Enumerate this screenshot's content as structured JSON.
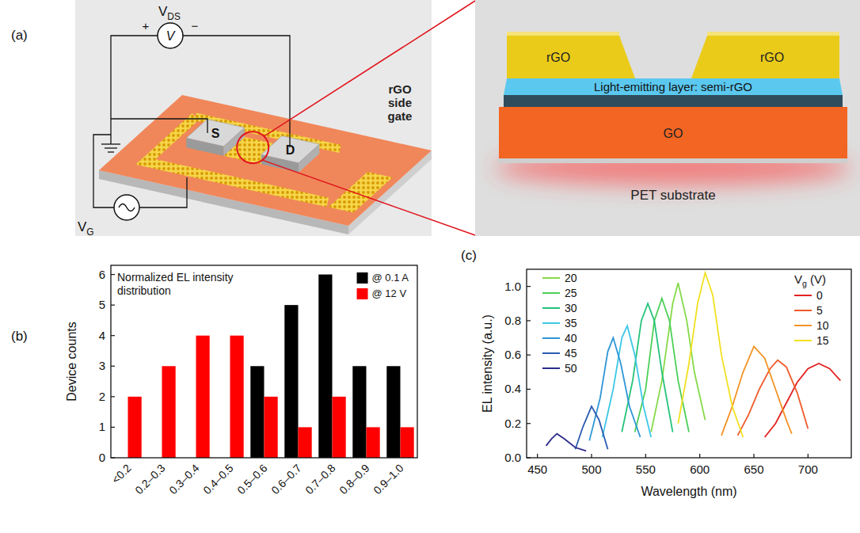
{
  "diagram": {
    "panel_label": "(a)",
    "device": {
      "vds_label": {
        "main": "V",
        "sub": "DS"
      },
      "meter": "V",
      "plus": "+",
      "minus": "−",
      "source": "S",
      "drain": "D",
      "vg_label": {
        "main": "V",
        "sub": "G"
      },
      "side_gate": "rGO side gate"
    },
    "cross_section": {
      "electrode_left": "rGO",
      "electrode_right": "rGO",
      "emitting_layer": "Light-emitting layer: semi-rGO",
      "dielectric": "GO",
      "substrate": "PET substrate"
    }
  },
  "chart_data": [
    {
      "panel_label": "(b)",
      "type": "bar",
      "annotation": "Normalized EL intensity distribution",
      "y_label": "Device counts",
      "categories": [
        "<0.2",
        "0.2–0.3",
        "0.3–0.4",
        "0.4–0.5",
        "0.5–0.6",
        "0.6–0.7",
        "0.7–0.8",
        "0.8–0.9",
        "0.9–1.0"
      ],
      "series": [
        {
          "name": "@ 0.1 A",
          "color": "#000000",
          "values": [
            0,
            0,
            0,
            0,
            3,
            5,
            6,
            3,
            3
          ]
        },
        {
          "name": "@ 12 V",
          "color": "#ff0000",
          "values": [
            2,
            3,
            4,
            4,
            2,
            1,
            2,
            1,
            1
          ]
        }
      ],
      "ylim": [
        0,
        6.3
      ],
      "yticks": [
        0,
        1,
        2,
        3,
        4,
        5,
        6
      ],
      "legend": "top-right",
      "grid": false
    },
    {
      "panel_label": "(c)",
      "type": "line",
      "x_label": "Wavelength (nm)",
      "y_label": "EL intensity (a.u.)",
      "legend_title": {
        "main": "V",
        "sub": "g",
        "rest": " (V)"
      },
      "series": [
        {
          "name": "20",
          "color": "#86da4a",
          "x": [
            555,
            565,
            575,
            580,
            588,
            595,
            605
          ],
          "values": [
            0.15,
            0.45,
            0.9,
            1.02,
            0.8,
            0.5,
            0.22
          ]
        },
        {
          "name": "25",
          "color": "#4ccf57",
          "x": [
            540,
            550,
            558,
            565,
            572,
            580,
            590
          ],
          "values": [
            0.15,
            0.4,
            0.8,
            0.93,
            0.8,
            0.45,
            0.15
          ]
        },
        {
          "name": "30",
          "color": "#25c27a",
          "x": [
            528,
            538,
            546,
            552,
            558,
            565,
            575
          ],
          "values": [
            0.15,
            0.45,
            0.8,
            0.9,
            0.8,
            0.5,
            0.15
          ]
        },
        {
          "name": "35",
          "color": "#3cc7e6",
          "x": [
            510,
            520,
            528,
            533,
            540,
            548,
            555
          ],
          "values": [
            0.12,
            0.4,
            0.7,
            0.77,
            0.6,
            0.3,
            0.12
          ]
        },
        {
          "name": "40",
          "color": "#2f96d6",
          "x": [
            498,
            508,
            515,
            520,
            527,
            535,
            545
          ],
          "values": [
            0.1,
            0.35,
            0.62,
            0.7,
            0.55,
            0.3,
            0.12
          ]
        },
        {
          "name": "45",
          "color": "#2b5bb0",
          "x": [
            485,
            492,
            500,
            507,
            515
          ],
          "values": [
            0.05,
            0.18,
            0.3,
            0.22,
            0.05
          ]
        },
        {
          "name": "50",
          "color": "#2d2c8a",
          "x": [
            458,
            463,
            468,
            475,
            485,
            495
          ],
          "values": [
            0.07,
            0.11,
            0.14,
            0.11,
            0.06,
            0.04
          ]
        },
        {
          "name": "0",
          "color": "#e32322",
          "x": [
            660,
            670,
            680,
            690,
            700,
            710,
            720,
            730
          ],
          "values": [
            0.12,
            0.2,
            0.32,
            0.44,
            0.52,
            0.55,
            0.52,
            0.45
          ]
        },
        {
          "name": "5",
          "color": "#ee5a2a",
          "x": [
            635,
            645,
            655,
            665,
            672,
            680,
            690,
            700
          ],
          "values": [
            0.13,
            0.25,
            0.4,
            0.52,
            0.57,
            0.53,
            0.38,
            0.17
          ]
        },
        {
          "name": "10",
          "color": "#f39325",
          "x": [
            620,
            630,
            640,
            650,
            660,
            670,
            680,
            685
          ],
          "values": [
            0.13,
            0.3,
            0.5,
            0.65,
            0.58,
            0.4,
            0.22,
            0.14
          ]
        },
        {
          "name": "15",
          "color": "#f2e020",
          "x": [
            580,
            590,
            598,
            605,
            612,
            620,
            630,
            640
          ],
          "values": [
            0.2,
            0.55,
            0.9,
            1.08,
            0.95,
            0.6,
            0.3,
            0.12
          ]
        }
      ],
      "xlim": [
        440,
        740
      ],
      "xticks": [
        450,
        500,
        550,
        600,
        650,
        700
      ],
      "ylim": [
        0,
        1.1
      ],
      "yticks": [
        {
          "value": 0,
          "label": "0.0"
        },
        0.2,
        0.4,
        0.6,
        0.8,
        {
          "value": 1,
          "label": "1.0"
        }
      ],
      "legend": "top-left",
      "grid": false
    }
  ]
}
